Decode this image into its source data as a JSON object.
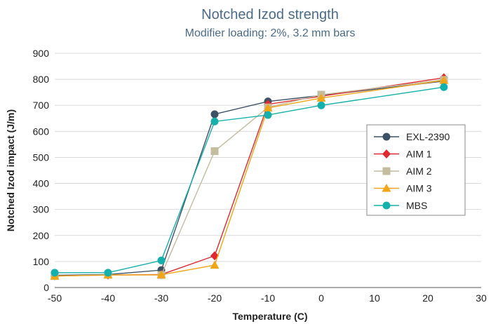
{
  "chart_data": {
    "type": "line",
    "title": "Notched Izod strength",
    "subtitle": "Modifier loading: 2%, 3.2 mm bars",
    "xlabel": "Temperature (C)",
    "ylabel": "Notched Izod impact (J/m)",
    "xlim": [
      -50,
      30
    ],
    "ylim": [
      0,
      900
    ],
    "x_ticks": [
      -50,
      -40,
      -30,
      -20,
      -10,
      0,
      10,
      20,
      30
    ],
    "y_ticks": [
      0,
      100,
      200,
      300,
      400,
      500,
      600,
      700,
      800,
      900
    ],
    "grid": "horizontal",
    "legend_position": "right",
    "series": [
      {
        "name": "EXL-2390",
        "color": "#3d5166",
        "marker": "circle",
        "x": [
          -50,
          -40,
          -30,
          -20,
          -10,
          0,
          23
        ],
        "y": [
          47,
          50,
          67,
          666,
          715,
          738,
          793
        ]
      },
      {
        "name": "AIM 1",
        "color": "#e0282e",
        "marker": "diamond",
        "x": [
          -50,
          -40,
          -30,
          -20,
          -10,
          0,
          23
        ],
        "y": [
          45,
          48,
          50,
          122,
          704,
          735,
          806
        ]
      },
      {
        "name": "AIM 2",
        "color": "#c4bc9e",
        "marker": "square",
        "x": [
          -50,
          -40,
          -30,
          -20,
          -10,
          0,
          23
        ],
        "y": [
          44,
          49,
          48,
          524,
          692,
          741,
          798
        ]
      },
      {
        "name": "AIM 3",
        "color": "#f2a516",
        "marker": "triangle",
        "x": [
          -50,
          -40,
          -30,
          -20,
          -10,
          0,
          23
        ],
        "y": [
          44,
          48,
          49,
          86,
          690,
          728,
          796
        ]
      },
      {
        "name": "MBS",
        "color": "#14b0ab",
        "marker": "circle",
        "x": [
          -50,
          -40,
          -30,
          -20,
          -10,
          0,
          23
        ],
        "y": [
          57,
          57,
          104,
          638,
          663,
          700,
          770
        ]
      }
    ]
  }
}
